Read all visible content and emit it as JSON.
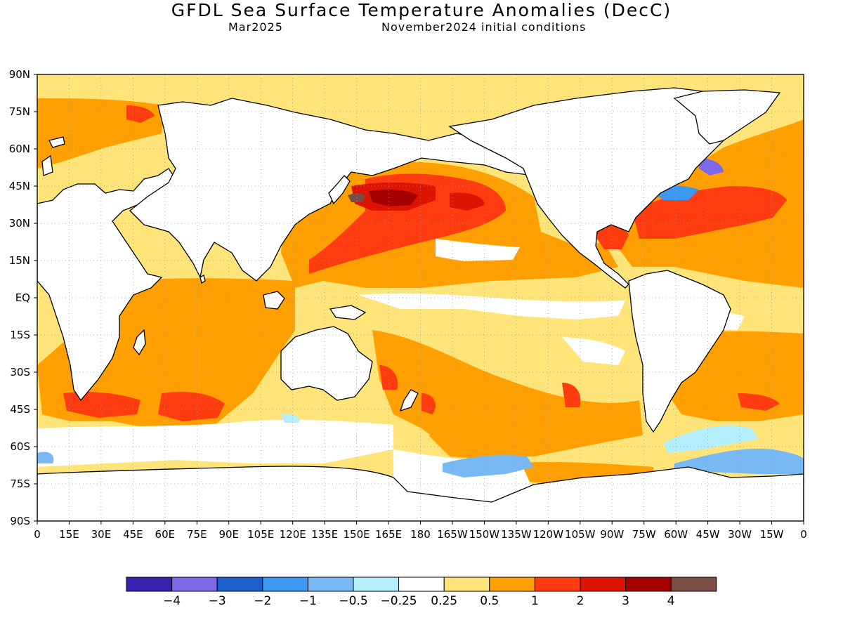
{
  "title": "GFDL Sea Surface Temperature Anomalies (DecC)",
  "subtitle_left": "Mar2025",
  "subtitle_right": "November2024 initial conditions",
  "map": {
    "projection": "equirectangular",
    "lat_labels": [
      "90N",
      "75N",
      "60N",
      "45N",
      "30N",
      "15N",
      "EQ",
      "15S",
      "30S",
      "45S",
      "60S",
      "75S",
      "90S"
    ],
    "lon_labels": [
      "0",
      "15E",
      "30E",
      "45E",
      "60E",
      "75E",
      "90E",
      "105E",
      "120E",
      "135E",
      "150E",
      "165E",
      "180",
      "165W",
      "150W",
      "135W",
      "120W",
      "105W",
      "90W",
      "75W",
      "60W",
      "45W",
      "30W",
      "15W",
      "0"
    ],
    "grid": true,
    "coastlines": true,
    "features": [
      {
        "name": "north-pacific-warm-anomaly",
        "level": "3 to 4"
      },
      {
        "name": "north-atlantic-warm-anomaly",
        "level": "1 to 2"
      },
      {
        "name": "labrador-sea-cold-anomaly",
        "level": "-1 to -2"
      },
      {
        "name": "southern-ocean-cold-anomaly",
        "level": "-0.5 to -1"
      },
      {
        "name": "equatorial-pacific-neutral-band",
        "level": "-0.25 to 0.25"
      }
    ]
  },
  "colorbar": {
    "colors": [
      "#3a20b0",
      "#7c69e8",
      "#1a5fcc",
      "#3c98f0",
      "#78b8f5",
      "#b5eefc",
      "#ffffff",
      "#ffe47a",
      "#ffa000",
      "#ff3b10",
      "#dd1500",
      "#a50000",
      "#7a4d44"
    ],
    "tick_labels": [
      "-4",
      "-3",
      "-2",
      "-1",
      "-0.5",
      "-0.25",
      "0.25",
      "0.5",
      "1",
      "2",
      "3",
      "4"
    ]
  }
}
